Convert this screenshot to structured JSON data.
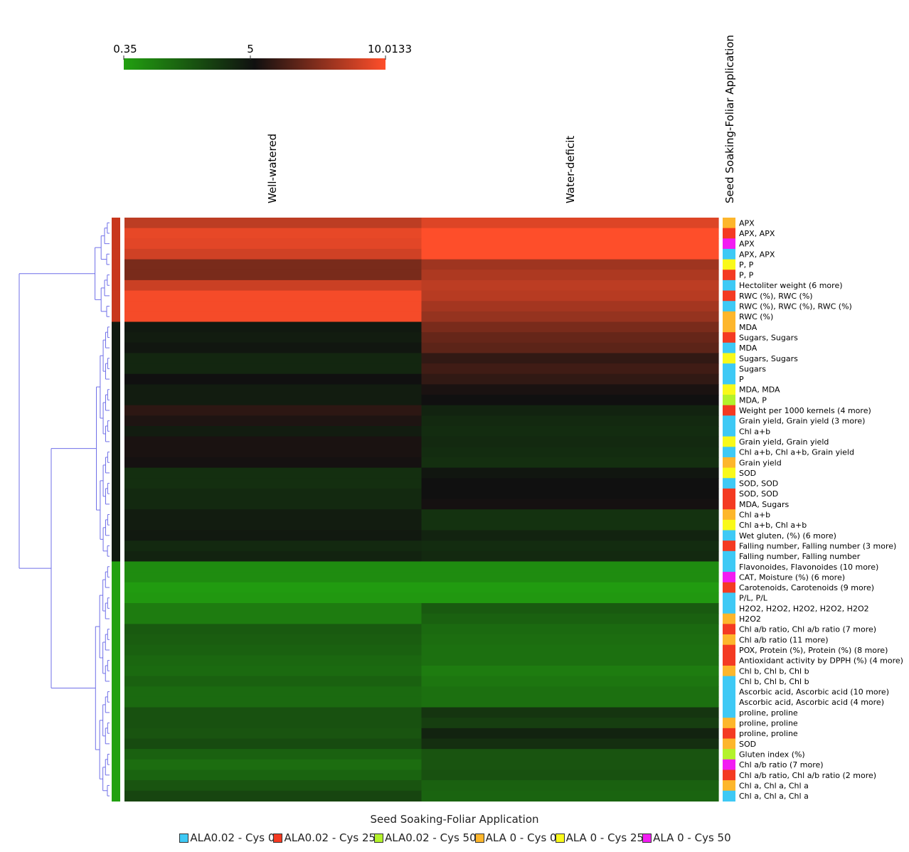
{
  "chart_data": {
    "type": "heatmap",
    "title": "",
    "colorbar": {
      "min": 0.35,
      "mid": 5,
      "max": 10.0133,
      "tick_labels": [
        "0.35",
        "5",
        "10.0133"
      ],
      "colors": [
        "#22a010",
        "#101010",
        "#ff4e2a"
      ]
    },
    "columns": [
      "Well-watered",
      "Water-deficit"
    ],
    "row_annotation_title": "Seed Soaking-Foliar Application",
    "groups": [
      {
        "name": "ALA0.02 - Cys 0",
        "color": "#3ec9f5"
      },
      {
        "name": "ALA0.02 - Cys 25",
        "color": "#f43a22"
      },
      {
        "name": "ALA0.02 - Cys 50",
        "color": "#b3f22b"
      },
      {
        "name": "ALA 0 - Cys 0",
        "color": "#fdb62c"
      },
      {
        "name": "ALA 0 - Cys 25",
        "color": "#f9f91a"
      },
      {
        "name": "ALA 0 - Cys 50",
        "color": "#f21cf2"
      }
    ],
    "rows": [
      {
        "label": "APX",
        "group": 3,
        "cluster": 0,
        "values": [
          8.6,
          9.3
        ]
      },
      {
        "label": "APX, APX",
        "group": 1,
        "cluster": 0,
        "values": [
          9.5,
          10.0
        ]
      },
      {
        "label": "APX",
        "group": 5,
        "cluster": 0,
        "values": [
          9.4,
          10.0
        ]
      },
      {
        "label": "APX, APX",
        "group": 0,
        "cluster": 0,
        "values": [
          9.0,
          10.0
        ]
      },
      {
        "label": "P, P",
        "group": 4,
        "cluster": 0,
        "values": [
          7.2,
          8.0
        ]
      },
      {
        "label": "P, P",
        "group": 1,
        "cluster": 0,
        "values": [
          7.2,
          8.3
        ]
      },
      {
        "label": "Hectoliter weight (6 more)",
        "group": 0,
        "cluster": 0,
        "values": [
          8.9,
          8.6
        ]
      },
      {
        "label": "RWC (%), RWC (%)",
        "group": 1,
        "cluster": 0,
        "values": [
          9.8,
          8.5
        ]
      },
      {
        "label": "RWC (%), RWC (%), RWC (%)",
        "group": 0,
        "cluster": 0,
        "values": [
          9.8,
          8.1
        ]
      },
      {
        "label": "RWC (%)",
        "group": 3,
        "cluster": 0,
        "values": [
          9.8,
          7.8
        ]
      },
      {
        "label": "MDA",
        "group": 3,
        "cluster": 1,
        "values": [
          4.7,
          7.2
        ]
      },
      {
        "label": "Sugars, Sugars",
        "group": 1,
        "cluster": 1,
        "values": [
          4.6,
          6.8
        ]
      },
      {
        "label": "MDA",
        "group": 0,
        "cluster": 1,
        "values": [
          4.8,
          6.6
        ]
      },
      {
        "label": "Sugars, Sugars",
        "group": 4,
        "cluster": 1,
        "values": [
          4.3,
          5.7
        ]
      },
      {
        "label": "Sugars",
        "group": 0,
        "cluster": 1,
        "values": [
          4.3,
          6.0
        ]
      },
      {
        "label": "P",
        "group": 0,
        "cluster": 1,
        "values": [
          5.0,
          5.7
        ]
      },
      {
        "label": "MDA, MDA",
        "group": 4,
        "cluster": 1,
        "values": [
          4.6,
          5.2
        ]
      },
      {
        "label": "MDA, P",
        "group": 2,
        "cluster": 1,
        "values": [
          4.6,
          5.0
        ]
      },
      {
        "label": "Weight per 1000 kernels (4 more)",
        "group": 1,
        "cluster": 1,
        "values": [
          5.6,
          4.4
        ]
      },
      {
        "label": "Grain yield, Grain yield (3 more)",
        "group": 0,
        "cluster": 1,
        "values": [
          5.3,
          4.2
        ]
      },
      {
        "label": "Chl a+b",
        "group": 0,
        "cluster": 1,
        "values": [
          4.6,
          4.1
        ]
      },
      {
        "label": "Grain yield, Grain yield",
        "group": 4,
        "cluster": 1,
        "values": [
          5.2,
          4.2
        ]
      },
      {
        "label": "Chl a+b, Chl a+b, Grain yield",
        "group": 0,
        "cluster": 1,
        "values": [
          5.2,
          4.1
        ]
      },
      {
        "label": "Grain yield",
        "group": 3,
        "cluster": 1,
        "values": [
          5.1,
          4.0
        ]
      },
      {
        "label": "SOD",
        "group": 4,
        "cluster": 1,
        "values": [
          4.0,
          4.8
        ]
      },
      {
        "label": "SOD, SOD",
        "group": 0,
        "cluster": 1,
        "values": [
          4.0,
          5.0
        ]
      },
      {
        "label": "SOD, SOD",
        "group": 1,
        "cluster": 1,
        "values": [
          4.2,
          5.0
        ]
      },
      {
        "label": "MDA, Sugars",
        "group": 1,
        "cluster": 1,
        "values": [
          4.2,
          5.1
        ]
      },
      {
        "label": "Chl a+b",
        "group": 3,
        "cluster": 1,
        "values": [
          4.6,
          3.9
        ]
      },
      {
        "label": "Chl a+b, Chl a+b",
        "group": 4,
        "cluster": 1,
        "values": [
          4.6,
          3.9
        ]
      },
      {
        "label": "Wet gluten, (%) (6 more)",
        "group": 0,
        "cluster": 1,
        "values": [
          4.7,
          4.4
        ]
      },
      {
        "label": "Falling number, Falling number (3 more)",
        "group": 1,
        "cluster": 1,
        "values": [
          4.2,
          4.1
        ]
      },
      {
        "label": "Falling number, Falling number",
        "group": 0,
        "cluster": 1,
        "values": [
          4.4,
          4.2
        ]
      },
      {
        "label": "Flavonoides, Flavonoides (10 more)",
        "group": 0,
        "cluster": 2,
        "values": [
          1.0,
          1.0
        ]
      },
      {
        "label": "CAT, Moisture (%) (6 more)",
        "group": 5,
        "cluster": 2,
        "values": [
          1.0,
          1.0
        ]
      },
      {
        "label": "Carotenoids, Carotenoids (9 more)",
        "group": 1,
        "cluster": 2,
        "values": [
          0.5,
          0.5
        ]
      },
      {
        "label": "P/L, P/L",
        "group": 0,
        "cluster": 2,
        "values": [
          0.6,
          0.6
        ]
      },
      {
        "label": "H2O2, H2O2, H2O2, H2O2, H2O2",
        "group": 0,
        "cluster": 2,
        "values": [
          1.5,
          2.6
        ]
      },
      {
        "label": "H2O2",
        "group": 3,
        "cluster": 2,
        "values": [
          1.5,
          2.4
        ]
      },
      {
        "label": "Chl a/b ratio, Chl a/b ratio (7 more)",
        "group": 1,
        "cluster": 2,
        "values": [
          2.6,
          2.1
        ]
      },
      {
        "label": "Chl a/b ratio (11 more)",
        "group": 3,
        "cluster": 2,
        "values": [
          2.5,
          2.0
        ]
      },
      {
        "label": "POX, Protein (%), Protein (%) (8 more)",
        "group": 1,
        "cluster": 2,
        "values": [
          2.4,
          1.9
        ]
      },
      {
        "label": "Antioxidant activity by DPPH (%) (4 more)",
        "group": 1,
        "cluster": 2,
        "values": [
          2.2,
          1.9
        ]
      },
      {
        "label": "Chl b, Chl b, Chl b",
        "group": 3,
        "cluster": 2,
        "values": [
          2.1,
          1.5
        ]
      },
      {
        "label": "Chl b, Chl b, Chl b",
        "group": 0,
        "cluster": 2,
        "values": [
          2.4,
          1.7
        ]
      },
      {
        "label": "Ascorbic acid, Ascorbic acid (10 more)",
        "group": 0,
        "cluster": 2,
        "values": [
          2.1,
          1.9
        ]
      },
      {
        "label": "Ascorbic acid, Ascorbic acid (4 more)",
        "group": 0,
        "cluster": 2,
        "values": [
          2.1,
          1.9
        ]
      },
      {
        "label": "proline, proline",
        "group": 0,
        "cluster": 2,
        "values": [
          2.9,
          3.8
        ]
      },
      {
        "label": "proline, proline",
        "group": 3,
        "cluster": 2,
        "values": [
          2.9,
          3.5
        ]
      },
      {
        "label": "proline, proline",
        "group": 1,
        "cluster": 2,
        "values": [
          2.8,
          4.4
        ]
      },
      {
        "label": "SOD",
        "group": 3,
        "cluster": 2,
        "values": [
          3.1,
          4.0
        ]
      },
      {
        "label": "Gluten index (%)",
        "group": 2,
        "cluster": 2,
        "values": [
          2.4,
          2.8
        ]
      },
      {
        "label": "Chl a/b ratio (7 more)",
        "group": 5,
        "cluster": 2,
        "values": [
          2.0,
          2.8
        ]
      },
      {
        "label": "Chl a/b ratio, Chl a/b ratio (2 more)",
        "group": 1,
        "cluster": 2,
        "values": [
          2.3,
          2.9
        ]
      },
      {
        "label": "Chl a, Chl a, Chl a",
        "group": 3,
        "cluster": 2,
        "values": [
          2.8,
          2.4
        ]
      },
      {
        "label": "Chl a, Chl a, Chl a",
        "group": 0,
        "cluster": 2,
        "values": [
          3.3,
          2.3
        ]
      }
    ],
    "cluster_colors": [
      "#c8371c",
      "#101a10",
      "#22a010"
    ]
  }
}
